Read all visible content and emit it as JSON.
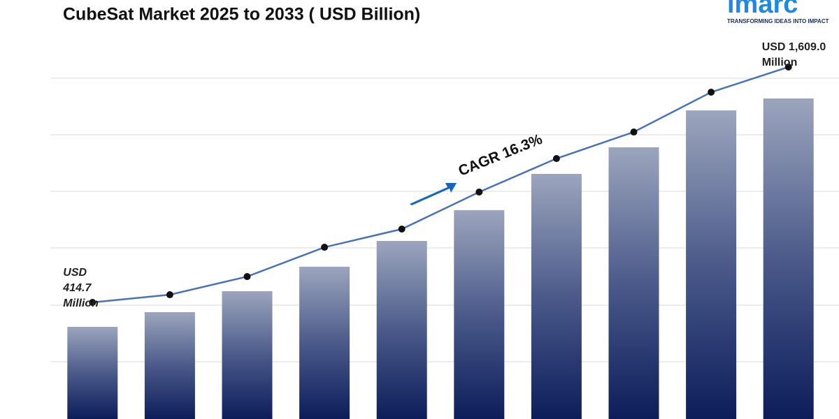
{
  "chart_data": {
    "type": "bar",
    "title": "CubeSat Market 2025 to 2033 ( USD Billion)",
    "logo": {
      "name": "imarc",
      "tagline": "TRANSFORMING IDEAS INTO IMPACT"
    },
    "categories": [
      null,
      null,
      null,
      null,
      null,
      null,
      null,
      null,
      null,
      null
    ],
    "series": [
      {
        "type": "bar",
        "color": "#0d1f5c",
        "values": [
          440,
          510,
          610,
          727,
          850,
          997,
          1170,
          1297,
          1473,
          1530
        ]
      },
      {
        "type": "line",
        "axis": "y2",
        "color": "#4a72b8",
        "values": [
          414.7,
          453.6,
          545.7,
          694.5,
          786.7,
          974.5,
          1144.6,
          1279.2,
          1481.2,
          1609.0
        ]
      }
    ],
    "ylim": [
      0,
      2000
    ],
    "y2lim": [
      -177,
      1949
    ],
    "annotations": [
      {
        "lines": [
          "USD",
          "414.7",
          "Million"
        ]
      },
      {
        "lines": [
          "USD 1,609.0",
          "Million"
        ]
      }
    ],
    "cagr_label": "CAGR  16.3%"
  }
}
